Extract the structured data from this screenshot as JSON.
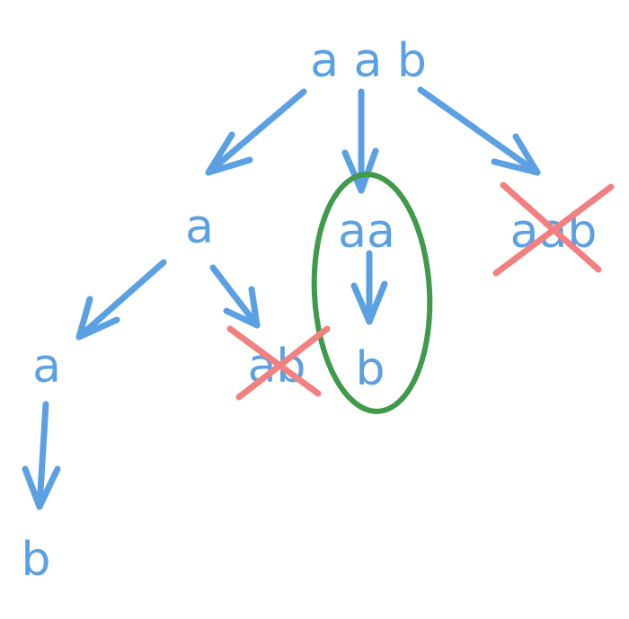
{
  "colors": {
    "text": "#5aa0e2",
    "arrow": "#5aa0e2",
    "cross": "#f28080",
    "highlight": "#3f9a4a",
    "background": "#ffffff"
  },
  "nodes": {
    "root": "a a b",
    "left_a": "a",
    "middle_aa": "aa",
    "right_aab": "aab",
    "left_left_a": "a",
    "left_right_ab": "ab",
    "middle_b": "b",
    "bottom_b": "b"
  },
  "icons": {
    "arrow": "arrow-icon",
    "cross": "cross-out-icon",
    "highlight": "highlight-ellipse"
  }
}
